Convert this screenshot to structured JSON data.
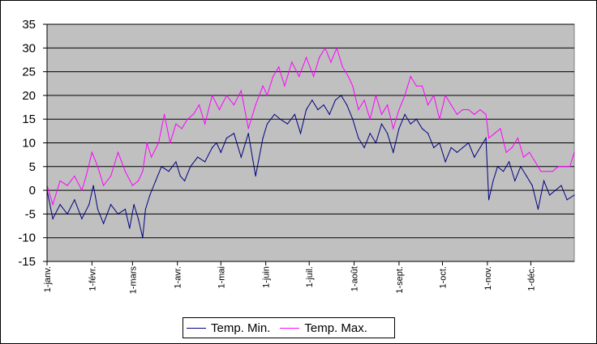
{
  "chart_data": {
    "type": "line",
    "title": "",
    "xlabel": "",
    "ylabel": "",
    "ylim": [
      -15,
      35
    ],
    "yticks": [
      -15,
      -10,
      -5,
      0,
      5,
      10,
      15,
      20,
      25,
      30,
      35
    ],
    "x_tick_labels": [
      "1-janv.",
      "1-févr.",
      "1-mars",
      "1-avr.",
      "1-mai",
      "1-juin",
      "1-juil.",
      "1-août",
      "1-sept.",
      "1-oct.",
      "1-nov.",
      "1-déc."
    ],
    "x_tick_days": [
      1,
      32,
      60,
      91,
      121,
      152,
      182,
      213,
      244,
      274,
      305,
      335
    ],
    "days_total": 365,
    "grid": true,
    "legend_position": "bottom",
    "plot_background": "#c0c0c0",
    "series": [
      {
        "name": "Temp. Min.",
        "color": "#000080",
        "points": [
          [
            1,
            0
          ],
          [
            5,
            -6
          ],
          [
            10,
            -3
          ],
          [
            15,
            -5
          ],
          [
            20,
            -2
          ],
          [
            25,
            -6
          ],
          [
            30,
            -3
          ],
          [
            33,
            1
          ],
          [
            36,
            -4
          ],
          [
            40,
            -7
          ],
          [
            45,
            -3
          ],
          [
            50,
            -5
          ],
          [
            55,
            -4
          ],
          [
            58,
            -8
          ],
          [
            61,
            -3
          ],
          [
            64,
            -6
          ],
          [
            67,
            -10
          ],
          [
            69,
            -4
          ],
          [
            72,
            -1
          ],
          [
            76,
            2
          ],
          [
            80,
            5
          ],
          [
            85,
            4
          ],
          [
            90,
            6
          ],
          [
            93,
            3
          ],
          [
            96,
            2
          ],
          [
            100,
            5
          ],
          [
            105,
            7
          ],
          [
            110,
            6
          ],
          [
            115,
            9
          ],
          [
            118,
            10
          ],
          [
            121,
            8
          ],
          [
            125,
            11
          ],
          [
            130,
            12
          ],
          [
            135,
            7
          ],
          [
            140,
            12
          ],
          [
            145,
            3
          ],
          [
            150,
            11
          ],
          [
            153,
            14
          ],
          [
            158,
            16
          ],
          [
            162,
            15
          ],
          [
            167,
            14
          ],
          [
            172,
            16
          ],
          [
            176,
            12
          ],
          [
            180,
            17
          ],
          [
            184,
            19
          ],
          [
            188,
            17
          ],
          [
            192,
            18
          ],
          [
            196,
            16
          ],
          [
            200,
            19
          ],
          [
            204,
            20
          ],
          [
            208,
            18
          ],
          [
            212,
            15
          ],
          [
            216,
            11
          ],
          [
            220,
            9
          ],
          [
            224,
            12
          ],
          [
            228,
            10
          ],
          [
            232,
            14
          ],
          [
            236,
            12
          ],
          [
            240,
            8
          ],
          [
            244,
            13
          ],
          [
            248,
            16
          ],
          [
            252,
            14
          ],
          [
            256,
            15
          ],
          [
            260,
            13
          ],
          [
            264,
            12
          ],
          [
            268,
            9
          ],
          [
            272,
            10
          ],
          [
            276,
            6
          ],
          [
            280,
            9
          ],
          [
            284,
            8
          ],
          [
            288,
            9
          ],
          [
            292,
            10
          ],
          [
            296,
            7
          ],
          [
            300,
            9
          ],
          [
            304,
            11
          ],
          [
            306,
            -2
          ],
          [
            309,
            2
          ],
          [
            312,
            5
          ],
          [
            316,
            4
          ],
          [
            320,
            6
          ],
          [
            324,
            2
          ],
          [
            328,
            5
          ],
          [
            332,
            3
          ],
          [
            336,
            1
          ],
          [
            340,
            -4
          ],
          [
            344,
            2
          ],
          [
            348,
            -1
          ],
          [
            352,
            0
          ],
          [
            356,
            1
          ],
          [
            360,
            -2
          ],
          [
            365,
            -1
          ]
        ]
      },
      {
        "name": "Temp. Max.",
        "color": "#ff00ff",
        "points": [
          [
            1,
            1
          ],
          [
            5,
            -3
          ],
          [
            10,
            2
          ],
          [
            15,
            1
          ],
          [
            20,
            3
          ],
          [
            25,
            0
          ],
          [
            28,
            3
          ],
          [
            32,
            8
          ],
          [
            36,
            5
          ],
          [
            40,
            1
          ],
          [
            45,
            3
          ],
          [
            50,
            8
          ],
          [
            55,
            4
          ],
          [
            60,
            1
          ],
          [
            64,
            2
          ],
          [
            67,
            4
          ],
          [
            70,
            10
          ],
          [
            73,
            7
          ],
          [
            78,
            10
          ],
          [
            82,
            16
          ],
          [
            86,
            10
          ],
          [
            90,
            14
          ],
          [
            94,
            13
          ],
          [
            98,
            15
          ],
          [
            102,
            16
          ],
          [
            106,
            18
          ],
          [
            110,
            14
          ],
          [
            115,
            20
          ],
          [
            120,
            17
          ],
          [
            125,
            20
          ],
          [
            130,
            18
          ],
          [
            135,
            21
          ],
          [
            140,
            13
          ],
          [
            145,
            18
          ],
          [
            150,
            22
          ],
          [
            153,
            20
          ],
          [
            157,
            24
          ],
          [
            161,
            26
          ],
          [
            165,
            22
          ],
          [
            170,
            27
          ],
          [
            175,
            24
          ],
          [
            180,
            28
          ],
          [
            185,
            24
          ],
          [
            189,
            28
          ],
          [
            193,
            30
          ],
          [
            197,
            27
          ],
          [
            201,
            30
          ],
          [
            205,
            26
          ],
          [
            209,
            24
          ],
          [
            212,
            22
          ],
          [
            216,
            17
          ],
          [
            220,
            19
          ],
          [
            224,
            15
          ],
          [
            228,
            20
          ],
          [
            232,
            16
          ],
          [
            236,
            18
          ],
          [
            240,
            13
          ],
          [
            244,
            17
          ],
          [
            248,
            20
          ],
          [
            252,
            24
          ],
          [
            256,
            22
          ],
          [
            260,
            22
          ],
          [
            264,
            18
          ],
          [
            268,
            20
          ],
          [
            272,
            15
          ],
          [
            276,
            20
          ],
          [
            280,
            18
          ],
          [
            284,
            16
          ],
          [
            288,
            17
          ],
          [
            292,
            17
          ],
          [
            296,
            16
          ],
          [
            300,
            17
          ],
          [
            304,
            16
          ],
          [
            306,
            11
          ],
          [
            310,
            12
          ],
          [
            314,
            13
          ],
          [
            318,
            8
          ],
          [
            322,
            9
          ],
          [
            326,
            11
          ],
          [
            330,
            7
          ],
          [
            334,
            8
          ],
          [
            338,
            6
          ],
          [
            342,
            4
          ],
          [
            346,
            4
          ],
          [
            350,
            4
          ],
          [
            354,
            5
          ],
          [
            358,
            5
          ],
          [
            362,
            5
          ],
          [
            365,
            8
          ]
        ]
      }
    ]
  }
}
